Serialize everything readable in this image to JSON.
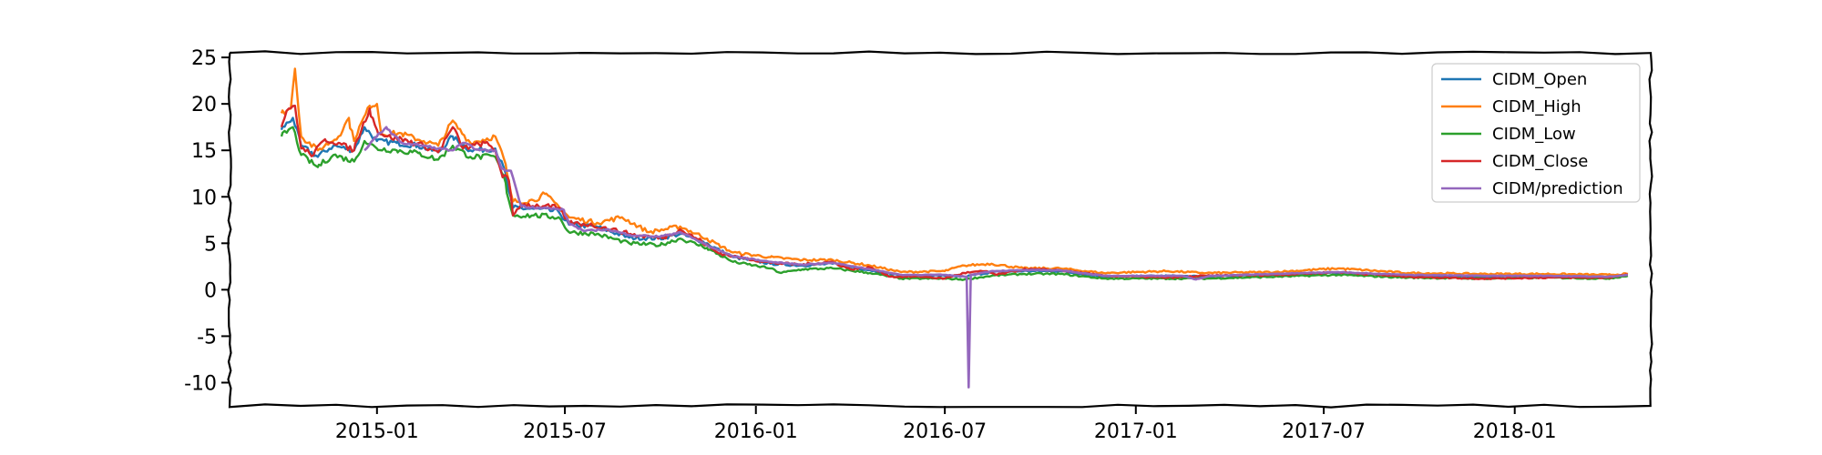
{
  "chart_data": {
    "type": "line",
    "title": "",
    "xlabel": "",
    "ylabel": "",
    "xlim": [
      "2014-08-12",
      "2018-05-12"
    ],
    "ylim": [
      -12.5,
      25.5
    ],
    "xticks": [
      "2015-01",
      "2015-07",
      "2016-01",
      "2016-07",
      "2017-01",
      "2017-07",
      "2018-01"
    ],
    "yticks": [
      25,
      20,
      15,
      10,
      5,
      0,
      -5,
      -10
    ],
    "ytick_labels": [
      "25",
      "20",
      "15",
      "10",
      "5",
      "0",
      "-5",
      "-10"
    ],
    "grid": false,
    "legend_position": "top-right",
    "style": "xkcd-sketch",
    "series": [
      {
        "name": "CIDM_Open",
        "color": "#1f77b4",
        "points": [
          [
            "2014-10-01",
            17.2
          ],
          [
            "2014-10-12",
            18.5
          ],
          [
            "2014-10-20",
            15.5
          ],
          [
            "2014-11-05",
            14.3
          ],
          [
            "2014-11-20",
            15.5
          ],
          [
            "2014-12-10",
            15.0
          ],
          [
            "2014-12-20",
            17.5
          ],
          [
            "2015-01-01",
            16.0
          ],
          [
            "2015-01-20",
            15.8
          ],
          [
            "2015-02-10",
            15.5
          ],
          [
            "2015-03-01",
            14.8
          ],
          [
            "2015-03-15",
            16.5
          ],
          [
            "2015-04-01",
            15.0
          ],
          [
            "2015-04-25",
            15.2
          ],
          [
            "2015-05-05",
            12.5
          ],
          [
            "2015-05-12",
            8.8
          ],
          [
            "2015-06-01",
            8.7
          ],
          [
            "2015-06-25",
            8.4
          ],
          [
            "2015-07-05",
            7.0
          ],
          [
            "2015-08-01",
            6.8
          ],
          [
            "2015-09-01",
            5.6
          ],
          [
            "2015-10-01",
            5.5
          ],
          [
            "2015-10-20",
            6.0
          ],
          [
            "2015-11-15",
            5.0
          ],
          [
            "2015-12-10",
            3.5
          ],
          [
            "2016-01-15",
            2.8
          ],
          [
            "2016-02-15",
            2.6
          ],
          [
            "2016-03-15",
            2.8
          ],
          [
            "2016-04-20",
            2.1
          ],
          [
            "2016-05-20",
            1.5
          ],
          [
            "2016-07-01",
            1.5
          ],
          [
            "2016-07-20",
            1.4
          ],
          [
            "2016-08-15",
            1.9
          ],
          [
            "2016-09-15",
            2.0
          ],
          [
            "2016-10-20",
            2.0
          ],
          [
            "2016-12-01",
            1.4
          ],
          [
            "2017-02-01",
            1.5
          ],
          [
            "2017-03-10",
            1.4
          ],
          [
            "2017-05-15",
            1.6
          ],
          [
            "2017-07-15",
            1.8
          ],
          [
            "2017-09-20",
            1.5
          ],
          [
            "2017-12-01",
            1.4
          ],
          [
            "2018-02-01",
            1.5
          ],
          [
            "2018-04-01",
            1.4
          ],
          [
            "2018-04-20",
            1.6
          ]
        ]
      },
      {
        "name": "CIDM_High",
        "color": "#ff7f0e",
        "points": [
          [
            "2014-10-01",
            19.0
          ],
          [
            "2014-10-10",
            19.5
          ],
          [
            "2014-10-14",
            23.8
          ],
          [
            "2014-10-20",
            16.5
          ],
          [
            "2014-11-05",
            15.0
          ],
          [
            "2014-11-25",
            16.5
          ],
          [
            "2014-12-05",
            18.5
          ],
          [
            "2014-12-10",
            16.0
          ],
          [
            "2014-12-25",
            19.8
          ],
          [
            "2015-01-01",
            20.0
          ],
          [
            "2015-01-05",
            16.8
          ],
          [
            "2015-01-25",
            16.8
          ],
          [
            "2015-02-15",
            16.0
          ],
          [
            "2015-03-01",
            15.5
          ],
          [
            "2015-03-15",
            18.2
          ],
          [
            "2015-04-01",
            15.8
          ],
          [
            "2015-04-25",
            16.5
          ],
          [
            "2015-05-05",
            13.5
          ],
          [
            "2015-05-12",
            9.5
          ],
          [
            "2015-06-01",
            9.6
          ],
          [
            "2015-06-12",
            10.3
          ],
          [
            "2015-06-25",
            9.0
          ],
          [
            "2015-07-05",
            7.8
          ],
          [
            "2015-08-01",
            7.2
          ],
          [
            "2015-08-25",
            7.8
          ],
          [
            "2015-09-20",
            6.2
          ],
          [
            "2015-10-20",
            6.8
          ],
          [
            "2015-11-15",
            5.5
          ],
          [
            "2015-12-10",
            4.0
          ],
          [
            "2016-01-15",
            3.5
          ],
          [
            "2016-02-15",
            3.2
          ],
          [
            "2016-03-15",
            3.2
          ],
          [
            "2016-04-20",
            2.6
          ],
          [
            "2016-05-20",
            1.9
          ],
          [
            "2016-07-01",
            2.0
          ],
          [
            "2016-07-20",
            2.6
          ],
          [
            "2016-08-15",
            2.8
          ],
          [
            "2016-09-15",
            2.3
          ],
          [
            "2016-10-20",
            2.3
          ],
          [
            "2016-12-01",
            1.8
          ],
          [
            "2017-02-01",
            2.0
          ],
          [
            "2017-03-10",
            1.8
          ],
          [
            "2017-05-15",
            1.9
          ],
          [
            "2017-07-15",
            2.3
          ],
          [
            "2017-09-20",
            1.8
          ],
          [
            "2017-12-01",
            1.7
          ],
          [
            "2018-02-01",
            1.7
          ],
          [
            "2018-04-01",
            1.6
          ],
          [
            "2018-04-20",
            1.7
          ]
        ]
      },
      {
        "name": "CIDM_Low",
        "color": "#2ca02c",
        "points": [
          [
            "2014-10-01",
            16.5
          ],
          [
            "2014-10-12",
            17.5
          ],
          [
            "2014-10-20",
            14.5
          ],
          [
            "2014-11-05",
            13.2
          ],
          [
            "2014-11-20",
            14.5
          ],
          [
            "2014-12-10",
            13.8
          ],
          [
            "2014-12-20",
            16.0
          ],
          [
            "2015-01-01",
            15.2
          ],
          [
            "2015-01-20",
            15.0
          ],
          [
            "2015-02-10",
            14.7
          ],
          [
            "2015-03-01",
            14.0
          ],
          [
            "2015-03-15",
            15.5
          ],
          [
            "2015-04-01",
            14.3
          ],
          [
            "2015-04-25",
            14.3
          ],
          [
            "2015-05-05",
            11.5
          ],
          [
            "2015-05-12",
            8.0
          ],
          [
            "2015-06-01",
            8.0
          ],
          [
            "2015-06-25",
            7.8
          ],
          [
            "2015-07-05",
            6.2
          ],
          [
            "2015-08-01",
            6.0
          ],
          [
            "2015-09-01",
            5.0
          ],
          [
            "2015-10-01",
            4.8
          ],
          [
            "2015-10-20",
            5.5
          ],
          [
            "2015-11-15",
            4.5
          ],
          [
            "2015-12-10",
            3.0
          ],
          [
            "2016-01-15",
            2.3
          ],
          [
            "2016-01-25",
            1.8
          ],
          [
            "2016-02-15",
            2.2
          ],
          [
            "2016-03-15",
            2.3
          ],
          [
            "2016-04-20",
            1.8
          ],
          [
            "2016-05-20",
            1.2
          ],
          [
            "2016-07-01",
            1.2
          ],
          [
            "2016-07-20",
            1.1
          ],
          [
            "2016-08-15",
            1.5
          ],
          [
            "2016-09-15",
            1.7
          ],
          [
            "2016-10-20",
            1.7
          ],
          [
            "2016-12-01",
            1.2
          ],
          [
            "2017-02-01",
            1.2
          ],
          [
            "2017-03-10",
            1.2
          ],
          [
            "2017-05-15",
            1.4
          ],
          [
            "2017-07-15",
            1.6
          ],
          [
            "2017-09-20",
            1.3
          ],
          [
            "2017-12-01",
            1.2
          ],
          [
            "2018-02-01",
            1.3
          ],
          [
            "2018-04-01",
            1.2
          ],
          [
            "2018-04-20",
            1.5
          ]
        ]
      },
      {
        "name": "CIDM_Close",
        "color": "#d62728",
        "points": [
          [
            "2014-10-01",
            17.5
          ],
          [
            "2014-10-08",
            19.5
          ],
          [
            "2014-10-14",
            19.8
          ],
          [
            "2014-10-20",
            15.2
          ],
          [
            "2014-11-01",
            14.5
          ],
          [
            "2014-11-12",
            16.2
          ],
          [
            "2014-11-25",
            15.8
          ],
          [
            "2014-12-10",
            15.0
          ],
          [
            "2014-12-25",
            19.5
          ],
          [
            "2015-01-01",
            17.2
          ],
          [
            "2015-01-10",
            16.5
          ],
          [
            "2015-01-25",
            16.2
          ],
          [
            "2015-02-15",
            15.5
          ],
          [
            "2015-03-01",
            14.8
          ],
          [
            "2015-03-15",
            17.5
          ],
          [
            "2015-03-25",
            15.2
          ],
          [
            "2015-04-15",
            15.8
          ],
          [
            "2015-04-25",
            15.0
          ],
          [
            "2015-05-01",
            12.5
          ],
          [
            "2015-05-08",
            11.8
          ],
          [
            "2015-05-12",
            8.0
          ],
          [
            "2015-05-20",
            9.2
          ],
          [
            "2015-06-10",
            9.0
          ],
          [
            "2015-06-25",
            8.8
          ],
          [
            "2015-07-05",
            7.2
          ],
          [
            "2015-07-25",
            7.0
          ],
          [
            "2015-08-15",
            6.5
          ],
          [
            "2015-09-10",
            5.8
          ],
          [
            "2015-10-05",
            5.6
          ],
          [
            "2015-10-20",
            6.5
          ],
          [
            "2015-11-10",
            5.2
          ],
          [
            "2015-11-25",
            4.0
          ],
          [
            "2015-12-10",
            3.6
          ],
          [
            "2016-01-15",
            2.9
          ],
          [
            "2016-02-15",
            2.7
          ],
          [
            "2016-03-15",
            3.0
          ],
          [
            "2016-04-01",
            2.2
          ],
          [
            "2016-04-20",
            2.4
          ],
          [
            "2016-05-10",
            1.4
          ],
          [
            "2016-06-10",
            1.4
          ],
          [
            "2016-07-01",
            1.2
          ],
          [
            "2016-07-20",
            1.8
          ],
          [
            "2016-08-10",
            2.0
          ],
          [
            "2016-08-20",
            1.6
          ],
          [
            "2016-09-15",
            2.2
          ],
          [
            "2016-10-20",
            2.1
          ],
          [
            "2016-12-01",
            1.5
          ],
          [
            "2017-02-01",
            1.3
          ],
          [
            "2017-03-10",
            1.5
          ],
          [
            "2017-05-15",
            1.6
          ],
          [
            "2017-07-15",
            1.9
          ],
          [
            "2017-09-20",
            1.4
          ],
          [
            "2017-12-01",
            1.2
          ],
          [
            "2018-02-01",
            1.3
          ],
          [
            "2018-04-01",
            1.3
          ],
          [
            "2018-04-20",
            1.6
          ]
        ]
      },
      {
        "name": "CIDM/prediction",
        "color": "#9467bd",
        "points": [
          [
            "2014-12-20",
            15.0
          ],
          [
            "2015-01-01",
            16.5
          ],
          [
            "2015-01-10",
            17.5
          ],
          [
            "2015-01-25",
            15.8
          ],
          [
            "2015-02-15",
            15.5
          ],
          [
            "2015-03-01",
            15.2
          ],
          [
            "2015-03-15",
            15.0
          ],
          [
            "2015-03-25",
            15.8
          ],
          [
            "2015-04-10",
            15.0
          ],
          [
            "2015-04-25",
            15.0
          ],
          [
            "2015-05-01",
            13.0
          ],
          [
            "2015-05-10",
            12.8
          ],
          [
            "2015-05-20",
            9.0
          ],
          [
            "2015-06-10",
            8.8
          ],
          [
            "2015-06-30",
            8.6
          ],
          [
            "2015-07-05",
            7.2
          ],
          [
            "2015-07-20",
            6.3
          ],
          [
            "2015-08-10",
            6.5
          ],
          [
            "2015-09-01",
            5.9
          ],
          [
            "2015-10-01",
            5.7
          ],
          [
            "2015-10-20",
            6.2
          ],
          [
            "2015-11-15",
            4.8
          ],
          [
            "2015-12-10",
            3.6
          ],
          [
            "2016-01-15",
            3.0
          ],
          [
            "2016-02-15",
            2.7
          ],
          [
            "2016-03-15",
            2.9
          ],
          [
            "2016-04-20",
            2.2
          ],
          [
            "2016-05-20",
            1.6
          ],
          [
            "2016-07-01",
            1.6
          ],
          [
            "2016-07-22",
            1.4
          ],
          [
            "2016-07-24",
            -10.5
          ],
          [
            "2016-07-26",
            1.6
          ],
          [
            "2016-08-15",
            2.0
          ],
          [
            "2016-09-15",
            2.1
          ],
          [
            "2016-10-20",
            2.1
          ],
          [
            "2016-12-01",
            1.5
          ],
          [
            "2017-02-15",
            1.5
          ],
          [
            "2017-02-28",
            1.1
          ],
          [
            "2017-03-15",
            1.5
          ],
          [
            "2017-05-15",
            1.7
          ],
          [
            "2017-07-15",
            1.9
          ],
          [
            "2017-09-20",
            1.6
          ],
          [
            "2017-12-01",
            1.5
          ],
          [
            "2018-02-01",
            1.5
          ],
          [
            "2018-04-01",
            1.4
          ],
          [
            "2018-04-20",
            1.6
          ]
        ]
      }
    ]
  }
}
